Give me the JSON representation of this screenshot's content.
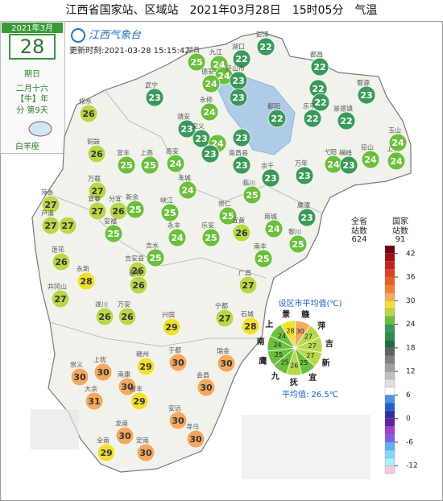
{
  "title": "江西省国家站、区域站　2021年03月28日　15时05分　气温",
  "logo": "江西气象台",
  "update_time": "更新时刻:2021-03-28 15:15:42",
  "calendar": {
    "month": "2021年3月",
    "day": "28",
    "weekday": "期日",
    "lunar": "二月十六",
    "zodiac": "【牛】年",
    "solar_term": "分 第9天",
    "sign": "白羊座"
  },
  "stations": [
    {
      "name": "彭泽",
      "temp": 22
    },
    {
      "name": "湖口",
      "temp": 22
    },
    {
      "name": "瑞昌",
      "temp": 25
    },
    {
      "name": "九江",
      "temp": 24
    },
    {
      "temp": 24
    },
    {
      "name": "德安",
      "temp": 24
    },
    {
      "name": "庐山市",
      "temp": 23
    },
    {
      "name": "都昌",
      "temp": 22
    },
    {
      "temp": 22
    },
    {
      "temp": 22
    },
    {
      "name": "婺源",
      "temp": 23
    },
    {
      "name": "武宁",
      "temp": 23
    },
    {
      "name": "永修",
      "temp": 24
    },
    {
      "temp": 23
    },
    {
      "name": "修水",
      "temp": 26
    },
    {
      "name": "鄱阳",
      "temp": 22
    },
    {
      "name": "乐平",
      "temp": 22
    },
    {
      "name": "景德镇",
      "temp": 22
    },
    {
      "name": "靖安",
      "temp": 23
    },
    {
      "name": "安义",
      "temp": 23
    },
    {
      "temp": 24
    },
    {
      "temp": 23
    },
    {
      "temp": 23
    },
    {
      "name": "南昌县",
      "temp": 23
    },
    {
      "name": "铜鼓",
      "temp": 26
    },
    {
      "name": "宜丰",
      "temp": 25
    },
    {
      "name": "上高",
      "temp": 25
    },
    {
      "name": "高安",
      "temp": 24
    },
    {
      "name": "余干",
      "temp": 23
    },
    {
      "name": "万年",
      "temp": 23
    },
    {
      "name": "弋阳",
      "temp": 24
    },
    {
      "name": "横峰",
      "temp": 23
    },
    {
      "name": "铅山",
      "temp": 24
    },
    {
      "name": "上饶",
      "temp": 24
    },
    {
      "name": "玉山",
      "temp": 24
    },
    {
      "name": "万载",
      "temp": 27
    },
    {
      "name": "丰城",
      "temp": 24
    },
    {
      "name": "临川",
      "temp": 25
    },
    {
      "name": "萍乡",
      "temp": 27
    },
    {
      "name": "芦溪",
      "temp": 27
    },
    {
      "temp": 27
    },
    {
      "name": "宜春",
      "temp": 27
    },
    {
      "name": "分宜",
      "temp": 26
    },
    {
      "name": "新余",
      "temp": 25
    },
    {
      "name": "峡江",
      "temp": 25
    },
    {
      "name": "崇仁",
      "temp": 25
    },
    {
      "name": "宜黄",
      "temp": 26
    },
    {
      "name": "鹰潭",
      "temp": 23
    },
    {
      "name": "南城",
      "temp": 24
    },
    {
      "name": "黎川",
      "temp": 25
    },
    {
      "name": "安福",
      "temp": 25
    },
    {
      "name": "永丰",
      "temp": 24
    },
    {
      "name": "乐安",
      "temp": 25
    },
    {
      "name": "吉水",
      "temp": 25
    },
    {
      "name": "吉安县",
      "temp": 26
    },
    {
      "name": "泰和",
      "temp": 26
    },
    {
      "name": "莲花",
      "temp": 26
    },
    {
      "name": "永新",
      "temp": 28
    },
    {
      "name": "南丰",
      "temp": 25
    },
    {
      "name": "广昌",
      "temp": 27
    },
    {
      "name": "井冈山",
      "temp": 27
    },
    {
      "name": "遂川",
      "temp": 26
    },
    {
      "name": "万安",
      "temp": 26
    },
    {
      "name": "兴国",
      "temp": 29
    },
    {
      "name": "宁都",
      "temp": 27
    },
    {
      "name": "石城",
      "temp": 28
    },
    {
      "name": "于都",
      "temp": 30
    },
    {
      "name": "瑞金",
      "temp": 30
    },
    {
      "name": "赣州",
      "temp": 29
    },
    {
      "name": "崇义",
      "temp": 30
    },
    {
      "name": "上犹",
      "temp": 30
    },
    {
      "name": "南康",
      "temp": 30
    },
    {
      "name": "大余",
      "temp": 31
    },
    {
      "name": "信丰",
      "temp": 29
    },
    {
      "name": "会昌",
      "temp": 30
    },
    {
      "name": "安远",
      "temp": 30
    },
    {
      "name": "寻乌",
      "temp": 30
    },
    {
      "name": "龙南",
      "temp": 30
    },
    {
      "name": "全南",
      "temp": 29
    },
    {
      "name": "定南",
      "temp": 30
    }
  ],
  "station_counts": [
    {
      "label": "全省站数",
      "value": 624
    },
    {
      "label": "国家站数",
      "value": 91
    }
  ],
  "colorbar": {
    "lim": [
      -14,
      44
    ],
    "step": 2,
    "ticks": [
      42,
      36,
      30,
      24,
      18,
      12,
      6,
      0,
      -6,
      -12
    ],
    "colors": [
      "#f8c8e8",
      "#a8f0f8",
      "#80d8f8",
      "#60b0f0",
      "#8060e0",
      "#a040d0",
      "#6020a0",
      "#3030a0",
      "#2060d0",
      "#5090e8",
      "#ffffff",
      "#e0e0e0",
      "#c0c0c0",
      "#a0a0a0",
      "#808080",
      "#606060",
      "#1a6e3a",
      "#2e8b4e",
      "#3a9a5a",
      "#6cbf3c",
      "#b8d84a",
      "#f0e030",
      "#f5a860",
      "#f08030",
      "#e86020",
      "#e04020",
      "#c82020",
      "#a01010",
      "#700010"
    ]
  },
  "city_averages": {
    "title": "设区市平均值(℃)",
    "cities": [
      "景",
      "赣",
      "萍",
      "吉",
      "新",
      "宜",
      "抚",
      "九",
      "鹰",
      "南",
      "上"
    ],
    "values": [
      28,
      30,
      27,
      27,
      27,
      25,
      26,
      25,
      25,
      24,
      24
    ],
    "average_label": "平均值: 26.5℃"
  }
}
